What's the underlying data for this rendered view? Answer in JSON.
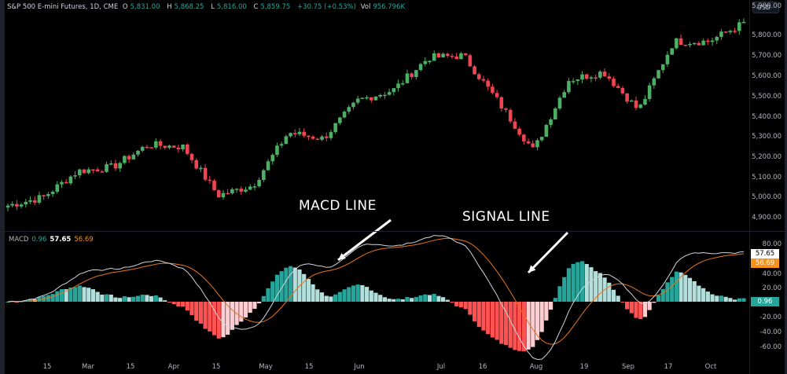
{
  "header": {
    "symbol": "S&P 500 E-mini Futures, 1D, CME",
    "open_label": "O",
    "open": "5,831.00",
    "high_label": "H",
    "high": "5,868.25",
    "low_label": "L",
    "low": "5,816.00",
    "close_label": "C",
    "close": "5,859.75",
    "change": "+30.75 (+0.53%)",
    "vol_label": "Vol",
    "vol": "956.796K"
  },
  "currency_button": "USD",
  "price_axis": [
    "5,900.00",
    "5,800.00",
    "5,700.00",
    "5,600.00",
    "5,500.00",
    "5,400.00",
    "5,300.00",
    "5,200.00",
    "5,100.00",
    "5,000.00",
    "4,900.00"
  ],
  "macd": {
    "label": "MACD",
    "histogram": "0.96",
    "macd_value": "57.65",
    "signal_value": "56.69",
    "axis": [
      "80.00",
      "40.00",
      "20.00",
      "-20.00",
      "-40.00",
      "-60.00"
    ]
  },
  "time_axis": [
    "15",
    "Mar",
    "15",
    "Apr",
    "15",
    "May",
    "15",
    "Jun",
    "Jul",
    "16",
    "Aug",
    "19",
    "Sep",
    "17",
    "Oct"
  ],
  "annotations": {
    "macd_line": "MACD LINE",
    "signal_line": "SIGNAL LINE"
  },
  "colors": {
    "up": "#4caf63",
    "down": "#ef4452",
    "hist_up_strong": "#26a69a",
    "hist_up_weak": "#b2dfdb",
    "hist_down_strong": "#ff5252",
    "hist_down_weak": "#ffcdd2",
    "macd_line": "#d1d4dc",
    "signal_line": "#e8761f"
  },
  "chart_data": [
    {
      "type": "candlestick",
      "title": "S&P 500 E-mini Futures, 1D, CME",
      "ylabel": "USD",
      "ylim": [
        4880,
        5920
      ],
      "x_ticks": [
        "15",
        "Mar",
        "15",
        "Apr",
        "15",
        "May",
        "15",
        "Jun",
        "Jul",
        "16",
        "Aug",
        "19",
        "Sep",
        "17",
        "Oct"
      ],
      "close_path": [
        {
          "x": "Feb 12",
          "close": 4960
        },
        {
          "x": "Feb 20",
          "close": 5000
        },
        {
          "x": "Mar 1",
          "close": 5130
        },
        {
          "x": "Mar 15",
          "close": 5150
        },
        {
          "x": "Mar 28",
          "close": 5260
        },
        {
          "x": "Apr 8",
          "close": 5250
        },
        {
          "x": "Apr 19",
          "close": 5010
        },
        {
          "x": "May 1",
          "close": 5060
        },
        {
          "x": "May 15",
          "close": 5320
        },
        {
          "x": "May 30",
          "close": 5290
        },
        {
          "x": "Jun 12",
          "close": 5480
        },
        {
          "x": "Jun 28",
          "close": 5530
        },
        {
          "x": "Jul 10",
          "close": 5690
        },
        {
          "x": "Jul 16",
          "close": 5700
        },
        {
          "x": "Jul 25",
          "close": 5470
        },
        {
          "x": "Aug 5",
          "close": 5230
        },
        {
          "x": "Aug 15",
          "close": 5580
        },
        {
          "x": "Aug 28",
          "close": 5620
        },
        {
          "x": "Sep 6",
          "close": 5430
        },
        {
          "x": "Sep 19",
          "close": 5770
        },
        {
          "x": "Oct 1",
          "close": 5770
        },
        {
          "x": "Oct 14",
          "close": 5860
        }
      ]
    },
    {
      "type": "line+bar",
      "title": "MACD",
      "ylim": [
        -70,
        90
      ],
      "series": [
        {
          "name": "MACD",
          "last": 57.65
        },
        {
          "name": "Signal",
          "last": 56.69
        },
        {
          "name": "Histogram",
          "last": 0.96
        }
      ]
    }
  ]
}
